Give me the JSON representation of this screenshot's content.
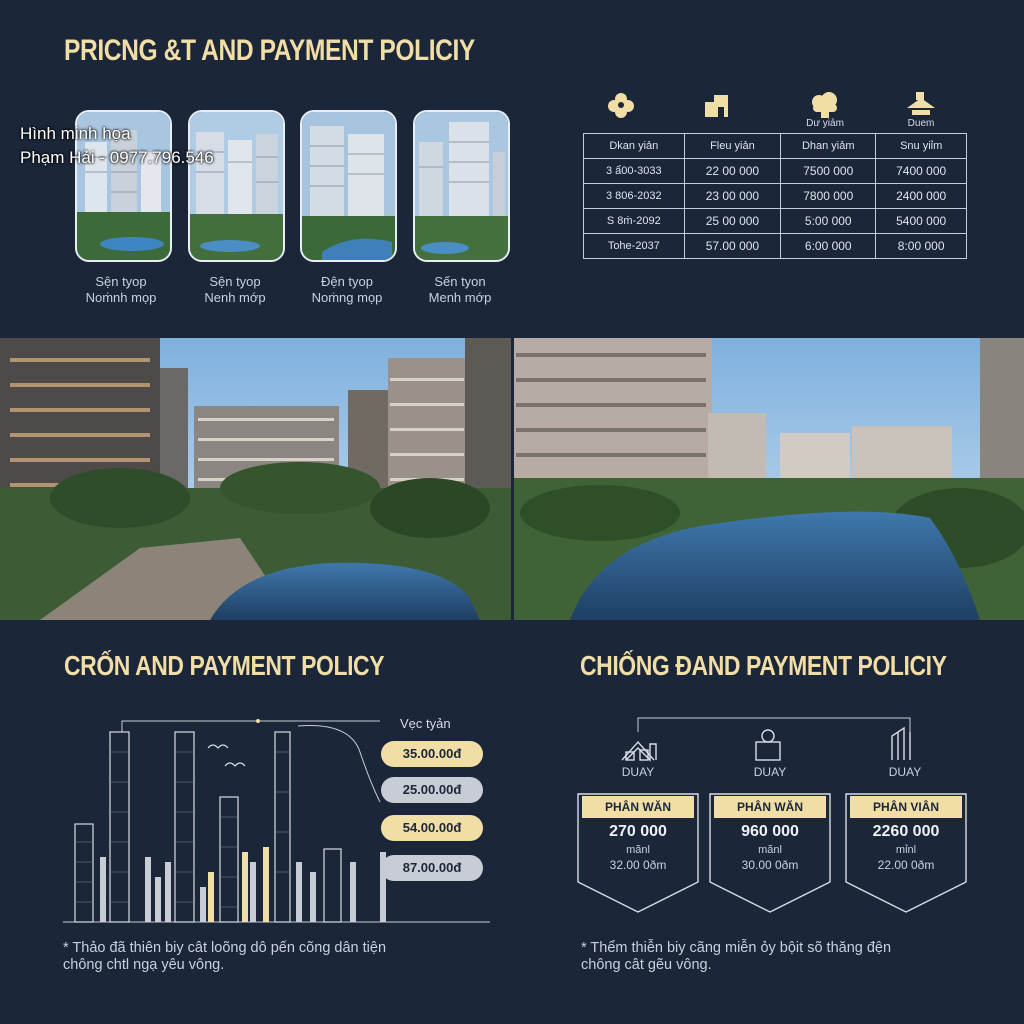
{
  "watermark": {
    "line1": "Hình minh họa",
    "line2": "Phạm Hải - 0977.796.546"
  },
  "section1": {
    "title": "PRICNG &T AND PAYMENT POLICIY",
    "units": [
      {
        "line1": "Sện tyop",
        "line2": "Noṁnh mọp"
      },
      {
        "line1": "Sện tyop",
        "line2": "Nenh mớp"
      },
      {
        "line1": "Đện tyop",
        "line2": "Noṁng mọp"
      },
      {
        "line1": "Sến tyon",
        "line2": "Menh mớp"
      }
    ]
  },
  "price_table": {
    "icon_labels": [
      "",
      "",
      "Dư yiảm",
      "Duem"
    ],
    "icon_names": [
      "flower-icon",
      "house-icon",
      "cloud-icon",
      "roof-icon"
    ],
    "headers": [
      "Dkan yiản",
      "Fleu yiản",
      "Dhan yiảm",
      "Snu yiỉm"
    ],
    "rows": [
      [
        "3 ẩ00-3033",
        "22 00 000",
        "7500 000",
        "7400 000"
      ],
      [
        "3 806-2032",
        "23 00 000",
        "7800 000",
        "2400 000"
      ],
      [
        "S 8ṁ-2092",
        "25 00 000",
        "5:00 000",
        "5400 000"
      ],
      [
        "Tohe-2037",
        "57.00 000",
        "6:00 000",
        "8:00 000"
      ]
    ]
  },
  "section2": {
    "title": "CRỐN AND PAYMENT POLICY",
    "legend_label": "Vẹc tyản",
    "prices": [
      "35.00.00đ",
      "25.00.00đ",
      "54.00.00đ",
      "87.00.00đ"
    ],
    "pill_colors": [
      "#f1dea6",
      "#c7ccd5",
      "#f1dea6",
      "#c7ccd5"
    ],
    "note_line1": "* Thảo đã thiên biy cât loõng dô pến cõng dân tiện",
    "note_line2": "chông chtl ngạ yêu vông."
  },
  "section3": {
    "title": "CHIỐNG ĐAND PAYMENT POLICIY",
    "cards": [
      {
        "icon": "house-outline-icon",
        "label": "DUAY",
        "title": "PHÂN WĂN",
        "value": "270 000",
        "unit": "mãnl",
        "sub": "32.00 0ðm"
      },
      {
        "icon": "building-outline-icon",
        "label": "DUAY",
        "title": "PHÂN WĂN",
        "value": "960 000",
        "unit": "mãnl",
        "sub": "30.00 0ðm"
      },
      {
        "icon": "door-outline-icon",
        "label": "DUAY",
        "title": "PHÂN VIÂN",
        "value": "2260 000",
        "unit": "mỉnl",
        "sub": "22.00 0ðm"
      }
    ],
    "note_line1": "* Thểm thiễn biy cãng miễn ỏy bộit sõ thăng đện",
    "note_line2": "chông cât gẽu vông."
  },
  "colors": {
    "background": "#1b2638",
    "accent": "#f1dea6",
    "text": "#d8dde6"
  }
}
